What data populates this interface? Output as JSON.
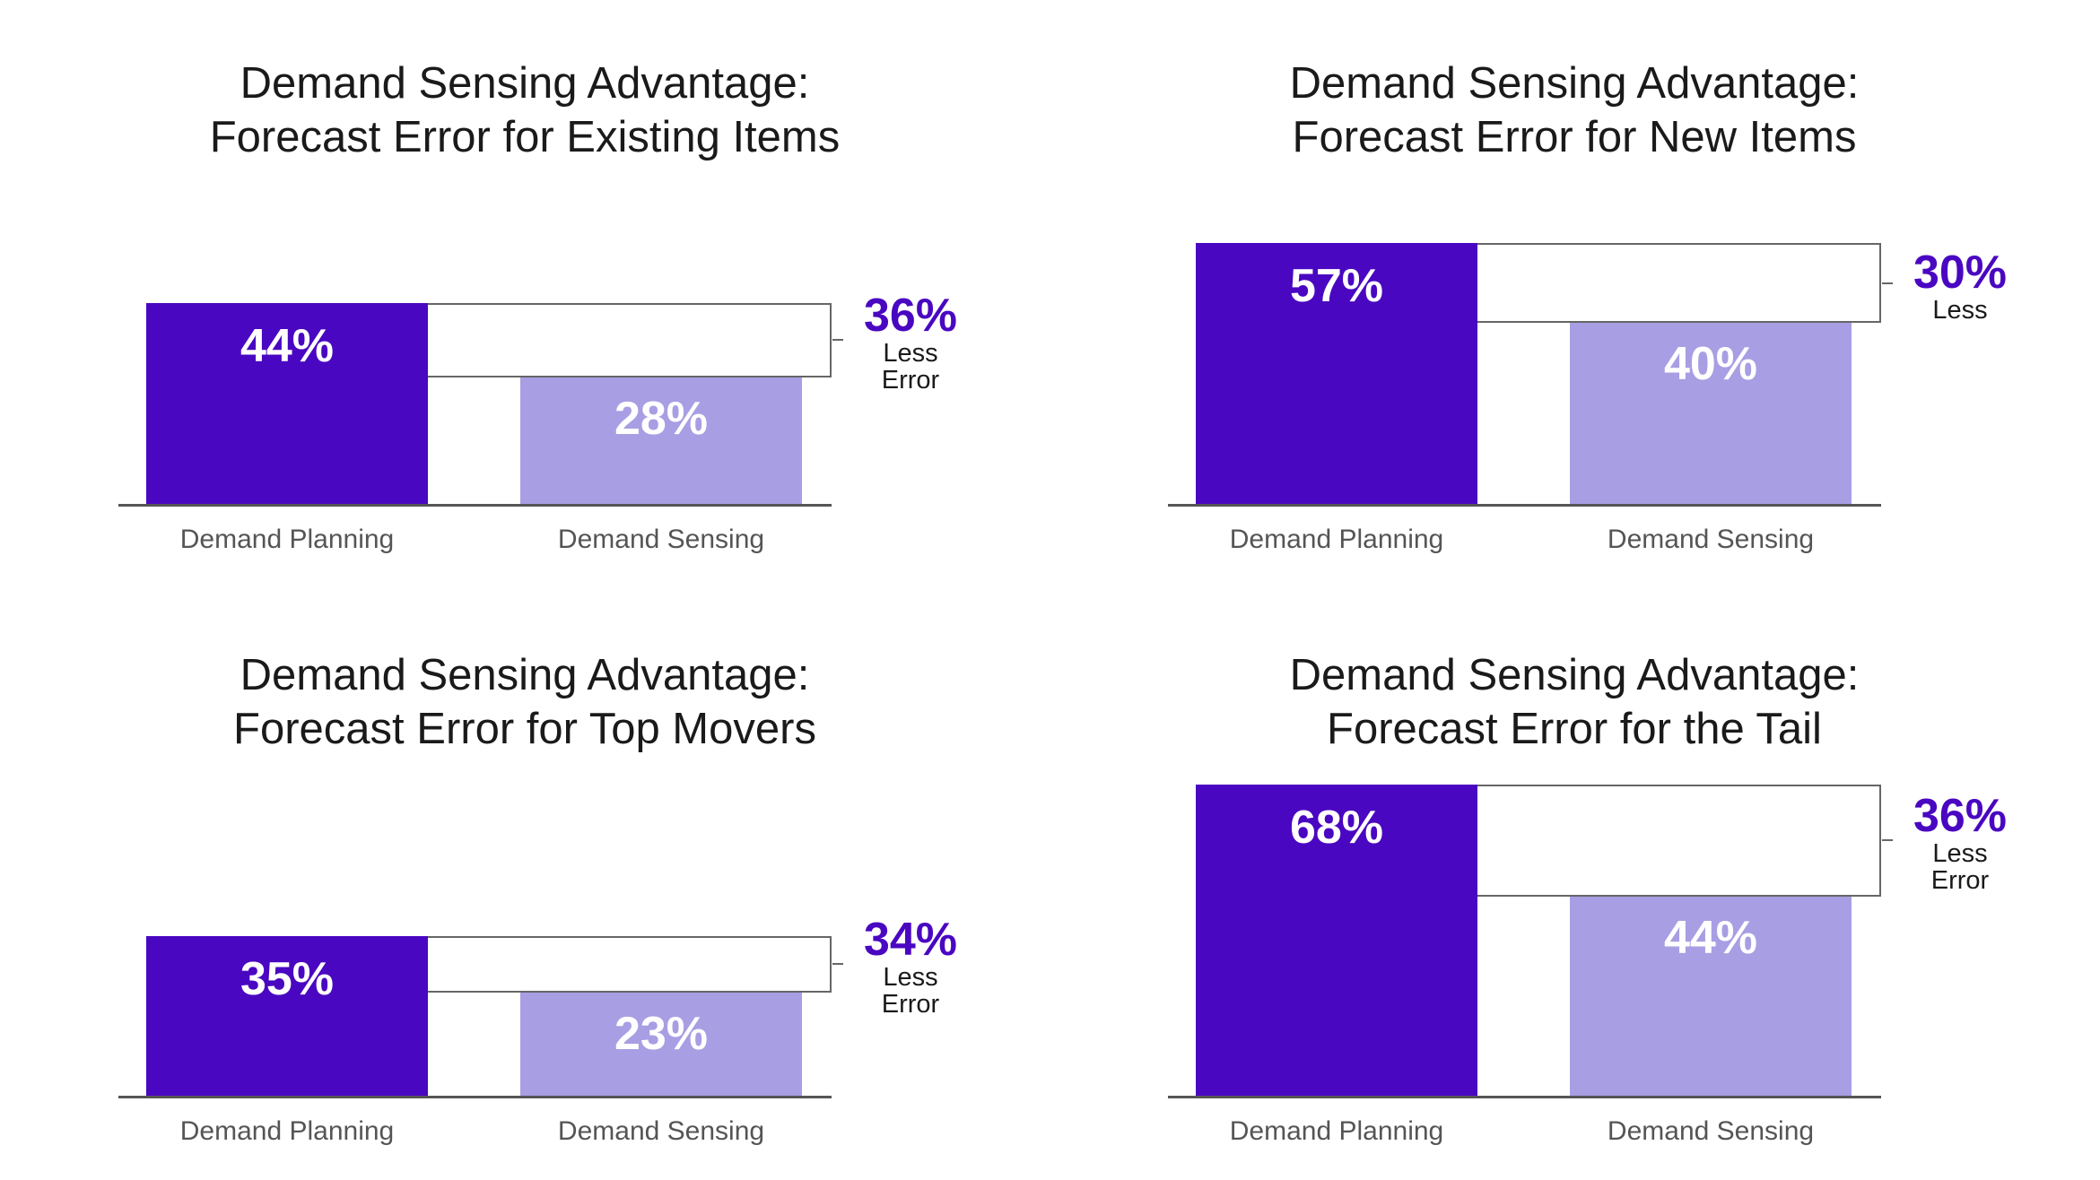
{
  "colors": {
    "planning": "#4a07c1",
    "sensing": "#a89ee3",
    "accent": "#4a07c1"
  },
  "chart_data": [
    {
      "type": "bar",
      "title": "Demand Sensing Advantage:",
      "subtitle": "Forecast Error for Existing Items",
      "categories": [
        "Demand Planning",
        "Demand Sensing"
      ],
      "values": [
        44,
        28
      ],
      "value_labels": [
        "44%",
        "28%"
      ],
      "advantage": {
        "value": "36%",
        "lines": [
          "Less",
          "Error"
        ]
      }
    },
    {
      "type": "bar",
      "title": "Demand Sensing Advantage:",
      "subtitle": "Forecast Error for New Items",
      "categories": [
        "Demand Planning",
        "Demand Sensing"
      ],
      "values": [
        57,
        40
      ],
      "value_labels": [
        "57%",
        "40%"
      ],
      "advantage": {
        "value": "30%",
        "lines": [
          "Less"
        ]
      }
    },
    {
      "type": "bar",
      "title": "Demand Sensing Advantage:",
      "subtitle": "Forecast Error for Top Movers",
      "categories": [
        "Demand Planning",
        "Demand Sensing"
      ],
      "values": [
        35,
        23
      ],
      "value_labels": [
        "35%",
        "23%"
      ],
      "advantage": {
        "value": "34%",
        "lines": [
          "Less",
          "Error"
        ]
      }
    },
    {
      "type": "bar",
      "title": "Demand Sensing Advantage:",
      "subtitle": "Forecast Error for the Tail",
      "categories": [
        "Demand Planning",
        "Demand Sensing"
      ],
      "values": [
        68,
        44
      ],
      "value_labels": [
        "68%",
        "44%"
      ],
      "advantage": {
        "value": "36%",
        "lines": [
          "Less",
          "Error"
        ]
      }
    }
  ]
}
